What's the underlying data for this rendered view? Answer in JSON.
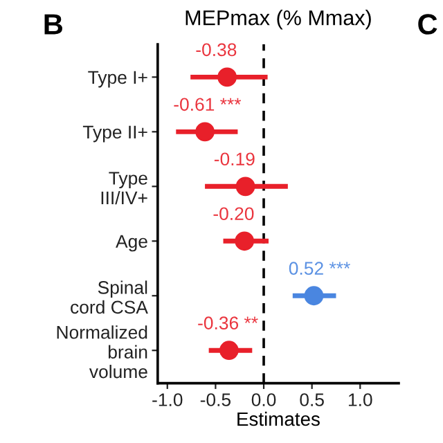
{
  "chart_data": {
    "type": "scatter",
    "orientation": "horizontal",
    "title": "MEPmax (% Mmax)",
    "xlabel": "Estimates",
    "categories": [
      "Type I+",
      "Type II+",
      "Type\nIII/IV+",
      "Age",
      "Spinal\ncord CSA",
      "Normalized\nbrain\nvolume"
    ],
    "values": [
      -0.38,
      -0.61,
      -0.19,
      -0.2,
      0.52,
      -0.36
    ],
    "errors": [
      [
        -0.76,
        0.04
      ],
      [
        -0.91,
        -0.27
      ],
      [
        -0.61,
        0.25
      ],
      [
        -0.42,
        0.05
      ],
      [
        0.3,
        0.75
      ],
      [
        -0.57,
        -0.12
      ]
    ],
    "colors": [
      "#e8202a",
      "#e8202a",
      "#e8202a",
      "#e8202a",
      "#4a86e0",
      "#e8202a"
    ],
    "value_labels": [
      "-0.38",
      "-0.61 ***",
      "-0.19",
      "-0.20",
      "0.52 ***",
      "-0.36 **"
    ],
    "xlim": [
      -1.1,
      1.4
    ],
    "xticks": [
      {
        "value": -1,
        "label": "-1.0"
      },
      -0.5,
      {
        "value": 0,
        "label": "0.0"
      },
      0.5,
      {
        "value": 1,
        "label": "1.0"
      }
    ],
    "ref_lines": [
      {
        "axis": "x",
        "value": 0,
        "color": "#000000",
        "line_style": "dashed"
      }
    ],
    "marker": "circle",
    "grid": false,
    "legend": false,
    "annotations": [
      "B",
      "C"
    ]
  }
}
